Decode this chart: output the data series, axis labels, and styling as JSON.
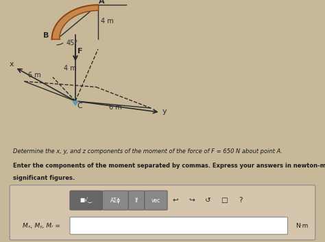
{
  "bg_color": "#c8b89a",
  "fig_width": 4.74,
  "fig_height": 3.54,
  "diagram_text": {
    "A_label": "A",
    "B_label": "B",
    "C_label": "C",
    "F_label": "F",
    "x_label": "x",
    "y_label": "y",
    "angle_label": "45°",
    "dim1": "4 m",
    "dim2": "4 m",
    "dim3": "6 m",
    "dim4": "6 m"
  },
  "problem_text_line1": "Determine the x, y, and z components of the moment of the force of F = 650 N about point A.",
  "problem_text_line2_bold": "Enter the components of the moment separated by commas. Express your answers in newton-meters to three",
  "problem_text_line3_bold": "significant figures.",
  "input_label": "Mₓ, Mᵧ, Mᵣ =",
  "unit_label": "N·m",
  "toolbar_symbols": [
    "■√‿",
    "AΣϕ",
    "If",
    "vec",
    "↩",
    "↪",
    "↺",
    "□",
    "?"
  ]
}
